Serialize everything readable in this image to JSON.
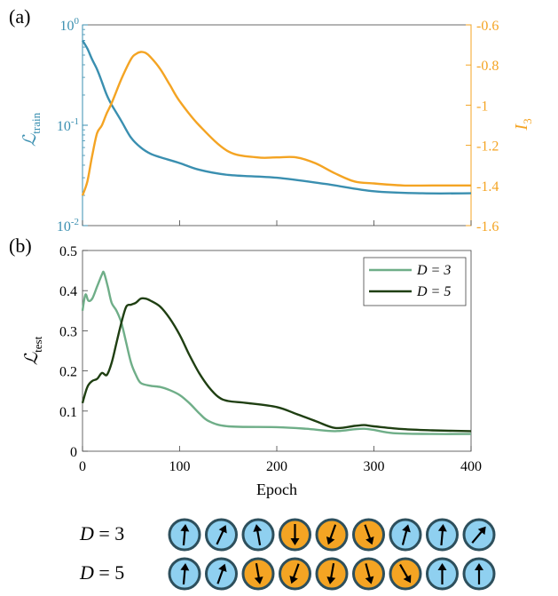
{
  "chart_data": [
    {
      "panel": "(a)",
      "type": "line",
      "xlim": [
        0,
        400
      ],
      "yscale_left": "log",
      "ylim_left": [
        0.01,
        1
      ],
      "yticks_left": [
        "10^{0}",
        "10^{-1}",
        "10^{-2}"
      ],
      "ylabel_left": "L_train",
      "ylim_right": [
        -1.6,
        -0.6
      ],
      "yticks_right": [
        "-0.6",
        "-0.8",
        "-1",
        "-1.2",
        "-1.4",
        "-1.6"
      ],
      "ylabel_right": "I_3",
      "colors": {
        "left": "#3a8fb0",
        "right": "#f4a423"
      },
      "series": [
        {
          "axis": "left",
          "x": [
            0,
            5,
            10,
            15,
            20,
            25,
            30,
            40,
            50,
            60,
            70,
            80,
            100,
            120,
            150,
            200,
            250,
            300,
            350,
            400
          ],
          "y": [
            0.7,
            0.58,
            0.45,
            0.36,
            0.27,
            0.2,
            0.16,
            0.11,
            0.075,
            0.06,
            0.052,
            0.048,
            0.042,
            0.036,
            0.032,
            0.03,
            0.026,
            0.022,
            0.021,
            0.021
          ]
        },
        {
          "axis": "right",
          "x": [
            0,
            5,
            10,
            15,
            20,
            25,
            30,
            40,
            50,
            55,
            60,
            65,
            70,
            80,
            90,
            100,
            120,
            150,
            180,
            200,
            220,
            240,
            260,
            280,
            300,
            330,
            360,
            400
          ],
          "y": [
            -1.45,
            -1.38,
            -1.25,
            -1.14,
            -1.1,
            -1.04,
            -0.99,
            -0.87,
            -0.77,
            -0.745,
            -0.735,
            -0.74,
            -0.76,
            -0.82,
            -0.9,
            -0.98,
            -1.1,
            -1.23,
            -1.26,
            -1.26,
            -1.26,
            -1.29,
            -1.34,
            -1.38,
            -1.39,
            -1.4,
            -1.4,
            -1.4
          ]
        }
      ]
    },
    {
      "panel": "(b)",
      "type": "line",
      "xlim": [
        0,
        400
      ],
      "ylim": [
        0,
        0.5
      ],
      "xticks": [
        "0",
        "100",
        "200",
        "300",
        "400"
      ],
      "yticks": [
        "0",
        "0.1",
        "0.2",
        "0.3",
        "0.4",
        "0.5"
      ],
      "xlabel": "Epoch",
      "ylabel": "L_test",
      "legend_position": "top-right",
      "series": [
        {
          "name": "D = 3",
          "color": "#6fae88",
          "x": [
            0,
            3,
            6,
            10,
            15,
            20,
            22,
            26,
            30,
            35,
            40,
            45,
            50,
            55,
            60,
            70,
            80,
            90,
            100,
            110,
            120,
            130,
            150,
            200,
            230,
            260,
            290,
            320,
            360,
            400
          ],
          "y": [
            0.35,
            0.39,
            0.375,
            0.38,
            0.41,
            0.44,
            0.445,
            0.41,
            0.37,
            0.35,
            0.32,
            0.27,
            0.22,
            0.19,
            0.17,
            0.163,
            0.16,
            0.152,
            0.14,
            0.12,
            0.095,
            0.075,
            0.062,
            0.06,
            0.056,
            0.05,
            0.056,
            0.045,
            0.043,
            0.043
          ]
        },
        {
          "name": "D = 5",
          "color": "#1f3f12",
          "x": [
            0,
            5,
            10,
            15,
            20,
            25,
            30,
            35,
            40,
            45,
            50,
            55,
            60,
            65,
            70,
            80,
            90,
            100,
            110,
            120,
            130,
            140,
            150,
            170,
            200,
            220,
            240,
            260,
            280,
            290,
            300,
            330,
            360,
            400
          ],
          "y": [
            0.12,
            0.16,
            0.175,
            0.18,
            0.195,
            0.19,
            0.22,
            0.27,
            0.32,
            0.36,
            0.365,
            0.37,
            0.38,
            0.38,
            0.375,
            0.36,
            0.33,
            0.29,
            0.24,
            0.195,
            0.16,
            0.135,
            0.125,
            0.12,
            0.11,
            0.093,
            0.075,
            0.058,
            0.063,
            0.065,
            0.062,
            0.055,
            0.052,
            0.05
          ]
        }
      ]
    }
  ],
  "spin_chains": [
    {
      "label": "D = 3",
      "spins": [
        {
          "color": "#8fd0f0",
          "angle": 5
        },
        {
          "color": "#8fd0f0",
          "angle": 25
        },
        {
          "color": "#8fd0f0",
          "angle": -10
        },
        {
          "color": "#f4a423",
          "angle": 180
        },
        {
          "color": "#f4a423",
          "angle": 200
        },
        {
          "color": "#f4a423",
          "angle": 160
        },
        {
          "color": "#8fd0f0",
          "angle": 15
        },
        {
          "color": "#8fd0f0",
          "angle": 5
        },
        {
          "color": "#8fd0f0",
          "angle": 40
        }
      ]
    },
    {
      "label": "D = 5",
      "spins": [
        {
          "color": "#8fd0f0",
          "angle": 5
        },
        {
          "color": "#8fd0f0",
          "angle": 20
        },
        {
          "color": "#f4a423",
          "angle": 170
        },
        {
          "color": "#f4a423",
          "angle": 200
        },
        {
          "color": "#f4a423",
          "angle": 190
        },
        {
          "color": "#f4a423",
          "angle": 165
        },
        {
          "color": "#f4a423",
          "angle": 150
        },
        {
          "color": "#8fd0f0",
          "angle": 0
        },
        {
          "color": "#8fd0f0",
          "angle": 0
        }
      ]
    }
  ]
}
